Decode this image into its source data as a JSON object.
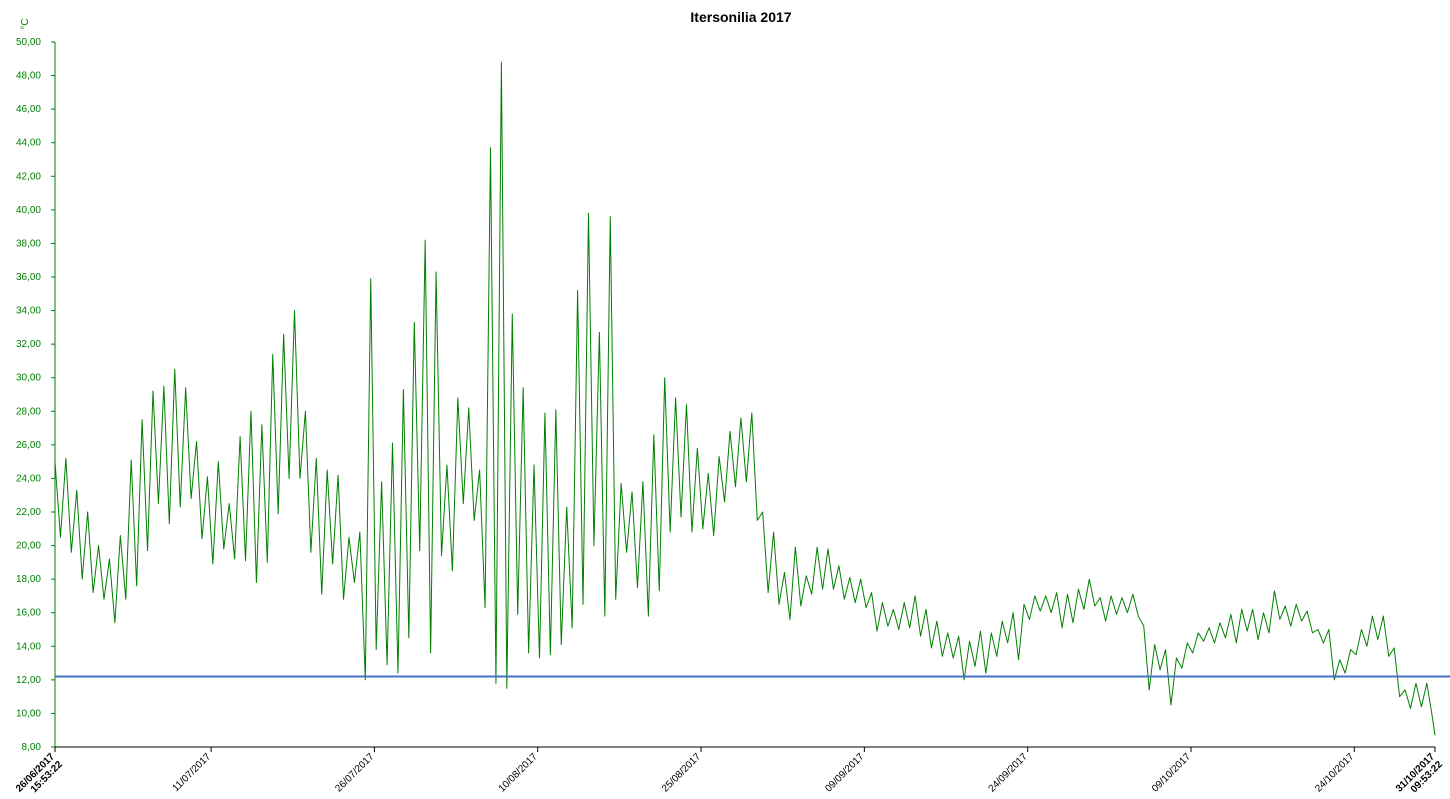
{
  "chart_data": {
    "type": "line",
    "title": "Itersonilia 2017",
    "y_label": "°C",
    "xlim": [
      "2017-06-26T15:53:22",
      "2017-10-31T09:53:22"
    ],
    "xticks": [
      {
        "value": "2017-06-26T15:53:22",
        "label": [
          "26/06/2017",
          "15:53:22"
        ]
      },
      {
        "value": "2017-07-11T00:00:00",
        "label": "11/07/2017"
      },
      {
        "value": "2017-07-26T00:00:00",
        "label": "26/07/2017"
      },
      {
        "value": "2017-08-10T00:00:00",
        "label": "10/08/2017"
      },
      {
        "value": "2017-08-25T00:00:00",
        "label": "25/08/2017"
      },
      {
        "value": "2017-09-09T00:00:00",
        "label": "09/09/2017"
      },
      {
        "value": "2017-09-24T00:00:00",
        "label": "24/09/2017"
      },
      {
        "value": "2017-10-09T00:00:00",
        "label": "09/10/2017"
      },
      {
        "value": "2017-10-24T00:00:00",
        "label": "24/10/2017"
      },
      {
        "value": "2017-10-31T09:53:22",
        "label": [
          "31/10/2017",
          "09:53:22"
        ]
      }
    ],
    "ylim": [
      8,
      50
    ],
    "yticks": [
      {
        "value": 8,
        "label": "8,00"
      },
      {
        "value": 10,
        "label": "10,00"
      },
      {
        "value": 12,
        "label": "12,00"
      },
      {
        "value": 14,
        "label": "14,00"
      },
      {
        "value": 16,
        "label": "16,00"
      },
      {
        "value": 18,
        "label": "18,00"
      },
      {
        "value": 20,
        "label": "20,00"
      },
      {
        "value": 22,
        "label": "22,00"
      },
      {
        "value": 24,
        "label": "24,00"
      },
      {
        "value": 26,
        "label": "26,00"
      },
      {
        "value": 28,
        "label": "28,00"
      },
      {
        "value": 30,
        "label": "30,00"
      },
      {
        "value": 32,
        "label": "32,00"
      },
      {
        "value": 34,
        "label": "34,00"
      },
      {
        "value": 36,
        "label": "36,00"
      },
      {
        "value": 38,
        "label": "38,00"
      },
      {
        "value": 40,
        "label": "40,00"
      },
      {
        "value": 42,
        "label": "42,00"
      },
      {
        "value": 44,
        "label": "44,00"
      },
      {
        "value": 46,
        "label": "46,00"
      },
      {
        "value": 48,
        "label": "48,00"
      },
      {
        "value": 50,
        "label": "50,00"
      }
    ],
    "axis_color": "#008000",
    "threshold": {
      "value": 12.2,
      "color": "#4472c4"
    },
    "x": [
      "2017-06-26T15:53",
      "2017-06-27T03:53",
      "2017-06-27T15:53",
      "2017-06-28T03:53",
      "2017-06-28T15:53",
      "2017-06-29T03:53",
      "2017-06-29T15:53",
      "2017-06-30T03:53",
      "2017-06-30T15:53",
      "2017-07-01T03:53",
      "2017-07-01T15:53",
      "2017-07-02T03:53",
      "2017-07-02T15:53",
      "2017-07-03T03:53",
      "2017-07-03T15:53",
      "2017-07-04T03:53",
      "2017-07-04T15:53",
      "2017-07-05T03:53",
      "2017-07-05T15:53",
      "2017-07-06T03:53",
      "2017-07-06T15:53",
      "2017-07-07T03:53",
      "2017-07-07T15:53",
      "2017-07-08T03:53",
      "2017-07-08T15:53",
      "2017-07-09T03:53",
      "2017-07-09T15:53",
      "2017-07-10T03:53",
      "2017-07-10T15:53",
      "2017-07-11T03:53",
      "2017-07-11T15:53",
      "2017-07-12T03:53",
      "2017-07-12T15:53",
      "2017-07-13T03:53",
      "2017-07-13T15:53",
      "2017-07-14T03:53",
      "2017-07-14T15:53",
      "2017-07-15T03:53",
      "2017-07-15T15:53",
      "2017-07-16T03:53",
      "2017-07-16T15:53",
      "2017-07-17T03:53",
      "2017-07-17T15:53",
      "2017-07-18T03:53",
      "2017-07-18T15:53",
      "2017-07-19T03:53",
      "2017-07-19T15:53",
      "2017-07-20T03:53",
      "2017-07-20T15:53",
      "2017-07-21T03:53",
      "2017-07-21T15:53",
      "2017-07-22T03:53",
      "2017-07-22T15:53",
      "2017-07-23T03:53",
      "2017-07-23T15:53",
      "2017-07-24T03:53",
      "2017-07-24T15:53",
      "2017-07-25T03:53",
      "2017-07-25T15:53",
      "2017-07-26T03:53",
      "2017-07-26T15:53",
      "2017-07-27T03:53",
      "2017-07-27T15:53",
      "2017-07-28T03:53",
      "2017-07-28T15:53",
      "2017-07-29T03:53",
      "2017-07-29T15:53",
      "2017-07-30T03:53",
      "2017-07-30T15:53",
      "2017-07-31T03:53",
      "2017-07-31T15:53",
      "2017-08-01T03:53",
      "2017-08-01T15:53",
      "2017-08-02T03:53",
      "2017-08-02T15:53",
      "2017-08-03T03:53",
      "2017-08-03T15:53",
      "2017-08-04T03:53",
      "2017-08-04T15:53",
      "2017-08-05T03:53",
      "2017-08-05T15:53",
      "2017-08-06T03:53",
      "2017-08-06T15:53",
      "2017-08-07T03:53",
      "2017-08-07T15:53",
      "2017-08-08T03:53",
      "2017-08-08T15:53",
      "2017-08-09T03:53",
      "2017-08-09T15:53",
      "2017-08-10T03:53",
      "2017-08-10T15:53",
      "2017-08-11T03:53",
      "2017-08-11T15:53",
      "2017-08-12T03:53",
      "2017-08-12T15:53",
      "2017-08-13T03:53",
      "2017-08-13T15:53",
      "2017-08-14T03:53",
      "2017-08-14T15:53",
      "2017-08-15T03:53",
      "2017-08-15T15:53",
      "2017-08-16T03:53",
      "2017-08-16T15:53",
      "2017-08-17T03:53",
      "2017-08-17T15:53",
      "2017-08-18T03:53",
      "2017-08-18T15:53",
      "2017-08-19T03:53",
      "2017-08-19T15:53",
      "2017-08-20T03:53",
      "2017-08-20T15:53",
      "2017-08-21T03:53",
      "2017-08-21T15:53",
      "2017-08-22T03:53",
      "2017-08-22T15:53",
      "2017-08-23T03:53",
      "2017-08-23T15:53",
      "2017-08-24T03:53",
      "2017-08-24T15:53",
      "2017-08-25T03:53",
      "2017-08-25T15:53",
      "2017-08-26T03:53",
      "2017-08-26T15:53",
      "2017-08-27T03:53",
      "2017-08-27T15:53",
      "2017-08-28T03:53",
      "2017-08-28T15:53",
      "2017-08-29T03:53",
      "2017-08-29T15:53",
      "2017-08-30T03:53",
      "2017-08-30T15:53",
      "2017-08-31T03:53",
      "2017-08-31T15:53",
      "2017-09-01T03:53",
      "2017-09-01T15:53",
      "2017-09-02T03:53",
      "2017-09-02T15:53",
      "2017-09-03T03:53",
      "2017-09-03T15:53",
      "2017-09-04T03:53",
      "2017-09-04T15:53",
      "2017-09-05T03:53",
      "2017-09-05T15:53",
      "2017-09-06T03:53",
      "2017-09-06T15:53",
      "2017-09-07T03:53",
      "2017-09-07T15:53",
      "2017-09-08T03:53",
      "2017-09-08T15:53",
      "2017-09-09T03:53",
      "2017-09-09T15:53",
      "2017-09-10T03:53",
      "2017-09-10T15:53",
      "2017-09-11T03:53",
      "2017-09-11T15:53",
      "2017-09-12T03:53",
      "2017-09-12T15:53",
      "2017-09-13T03:53",
      "2017-09-13T15:53",
      "2017-09-14T03:53",
      "2017-09-14T15:53",
      "2017-09-15T03:53",
      "2017-09-15T15:53",
      "2017-09-16T03:53",
      "2017-09-16T15:53",
      "2017-09-17T03:53",
      "2017-09-17T15:53",
      "2017-09-18T03:53",
      "2017-09-18T15:53",
      "2017-09-19T03:53",
      "2017-09-19T15:53",
      "2017-09-20T03:53",
      "2017-09-20T15:53",
      "2017-09-21T03:53",
      "2017-09-21T15:53",
      "2017-09-22T03:53",
      "2017-09-22T15:53",
      "2017-09-23T03:53",
      "2017-09-23T15:53",
      "2017-09-24T03:53",
      "2017-09-24T15:53",
      "2017-09-25T03:53",
      "2017-09-25T15:53",
      "2017-09-26T03:53",
      "2017-09-26T15:53",
      "2017-09-27T03:53",
      "2017-09-27T15:53",
      "2017-09-28T03:53",
      "2017-09-28T15:53",
      "2017-09-29T03:53",
      "2017-09-29T15:53",
      "2017-09-30T03:53",
      "2017-09-30T15:53",
      "2017-10-01T03:53",
      "2017-10-01T15:53",
      "2017-10-02T03:53",
      "2017-10-02T15:53",
      "2017-10-03T03:53",
      "2017-10-03T15:53",
      "2017-10-04T03:53",
      "2017-10-04T15:53",
      "2017-10-05T03:53",
      "2017-10-05T15:53",
      "2017-10-06T03:53",
      "2017-10-06T15:53",
      "2017-10-07T03:53",
      "2017-10-07T15:53",
      "2017-10-08T03:53",
      "2017-10-08T15:53",
      "2017-10-09T03:53",
      "2017-10-09T15:53",
      "2017-10-10T03:53",
      "2017-10-10T15:53",
      "2017-10-11T03:53",
      "2017-10-11T15:53",
      "2017-10-12T03:53",
      "2017-10-12T15:53",
      "2017-10-13T03:53",
      "2017-10-13T15:53",
      "2017-10-14T03:53",
      "2017-10-14T15:53",
      "2017-10-15T03:53",
      "2017-10-15T15:53",
      "2017-10-16T03:53",
      "2017-10-16T15:53",
      "2017-10-17T03:53",
      "2017-10-17T15:53",
      "2017-10-18T03:53",
      "2017-10-18T15:53",
      "2017-10-19T03:53",
      "2017-10-19T15:53",
      "2017-10-20T03:53",
      "2017-10-20T15:53",
      "2017-10-21T03:53",
      "2017-10-21T15:53",
      "2017-10-22T03:53",
      "2017-10-22T15:53",
      "2017-10-23T03:53",
      "2017-10-23T15:53",
      "2017-10-24T03:53",
      "2017-10-24T15:53",
      "2017-10-25T03:53",
      "2017-10-25T15:53",
      "2017-10-26T03:53",
      "2017-10-26T15:53",
      "2017-10-27T03:53",
      "2017-10-27T15:53",
      "2017-10-28T03:53",
      "2017-10-28T15:53",
      "2017-10-29T03:53",
      "2017-10-29T15:53",
      "2017-10-30T03:53",
      "2017-10-30T15:53",
      "2017-10-31T03:53",
      "2017-10-31T09:53"
    ],
    "series": [
      {
        "color": "#008000",
        "values": [
          25,
          20.5,
          25.2,
          19.6,
          23.3,
          18,
          22,
          17.2,
          20,
          16.8,
          19.2,
          15.4,
          20.6,
          16.8,
          25.1,
          17.6,
          27.5,
          19.7,
          29.2,
          22.5,
          29.5,
          21.3,
          30.5,
          22.3,
          29.4,
          22.8,
          26.2,
          20.4,
          24.1,
          18.9,
          25,
          19.8,
          22.5,
          19.2,
          26.5,
          19.1,
          28,
          17.8,
          27.2,
          19,
          31.4,
          21.9,
          32.6,
          24,
          34,
          24,
          28,
          19.6,
          25.2,
          17.1,
          24.5,
          18.9,
          24.2,
          16.8,
          20.5,
          17.8,
          20.8,
          12,
          35.9,
          13.8,
          23.8,
          12.9,
          26.1,
          12.4,
          29.3,
          14.5,
          33.3,
          19.7,
          38.2,
          13.6,
          36.3,
          19.4,
          24.8,
          18.5,
          28.8,
          22.5,
          28.2,
          21.5,
          24.5,
          16.3,
          43.7,
          11.8,
          48.8,
          11.5,
          33.8,
          15.9,
          29.4,
          13.6,
          24.8,
          13.3,
          27.9,
          13.5,
          28.1,
          14.1,
          22.3,
          15.1,
          35.2,
          16.5,
          39.8,
          20,
          32.7,
          15.8,
          39.6,
          16.8,
          23.7,
          19.6,
          23.2,
          17.5,
          23.8,
          15.8,
          26.6,
          17.3,
          30,
          20.8,
          28.8,
          21.7,
          28.4,
          20.8,
          25.8,
          21,
          24.3,
          20.6,
          25.3,
          22.6,
          26.8,
          23.5,
          27.6,
          23.8,
          27.9,
          21.5,
          22,
          17.2,
          20.8,
          16.5,
          18.4,
          15.6,
          19.9,
          16.4,
          18.2,
          17.1,
          19.9,
          17.4,
          19.8,
          17.4,
          18.8,
          16.8,
          18.1,
          16.6,
          18,
          16.3,
          17.2,
          14.9,
          16.6,
          15.2,
          16.2,
          15,
          16.6,
          15.1,
          17,
          14.6,
          16.2,
          13.9,
          15.5,
          13.4,
          14.8,
          13.3,
          14.6,
          12,
          14.3,
          12.8,
          14.9,
          12.4,
          14.8,
          13.4,
          15.5,
          14.2,
          16,
          13.2,
          16.5,
          15.6,
          17,
          16.1,
          17,
          16,
          17.2,
          15.1,
          17.1,
          15.4,
          17.4,
          16.2,
          18,
          16.4,
          16.9,
          15.5,
          17,
          15.9,
          16.9,
          16,
          17.1,
          15.8,
          15.2,
          11.4,
          14.1,
          12.6,
          13.8,
          10.5,
          13.3,
          12.7,
          14.2,
          13.6,
          14.8,
          14.3,
          15.1,
          14.2,
          15.4,
          14.5,
          15.9,
          14.2,
          16.2,
          14.9,
          16.2,
          14.4,
          16,
          14.8,
          17.3,
          15.6,
          16.4,
          15.2,
          16.5,
          15.5,
          16.1,
          14.8,
          15,
          14.2,
          15,
          12,
          13.2,
          12.4,
          13.8,
          13.5,
          15,
          14,
          15.8,
          14.4,
          15.8,
          13.4,
          13.9,
          11,
          11.4,
          10.3,
          11.8,
          10.4,
          11.8,
          9.8,
          8.7
        ]
      }
    ]
  }
}
